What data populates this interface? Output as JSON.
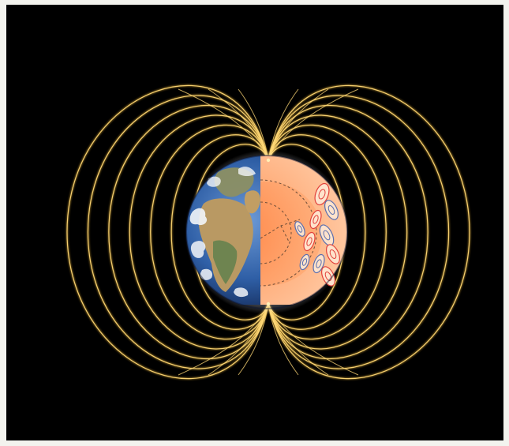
{
  "figure": {
    "subject": "earth-magnetic-dipole-field",
    "colors": {
      "page_border": "#f3f3ee",
      "background": "#000000",
      "field_line": "#e9b43a",
      "field_line_highlight": "#ffd876",
      "ocean": "#2f5fa6",
      "land": "#7d8a5c",
      "desert": "#c9a56b",
      "cloud": "#f2f5f8",
      "mantle_outer": "#ffc799",
      "mantle_inner": "#ff9a5a",
      "core_boundary": "#6f4e3a",
      "convection_red": "#e2423c",
      "convection_blue": "#5a6fb0"
    },
    "icons": {
      "globe": "earth-cutaway-icon",
      "north_pole": "north-pole-convergence",
      "south_pole": "south-pole-convergence"
    },
    "field_lines": {
      "count_per_side": 7,
      "shape": "closed dipole loops converging at poles"
    }
  }
}
